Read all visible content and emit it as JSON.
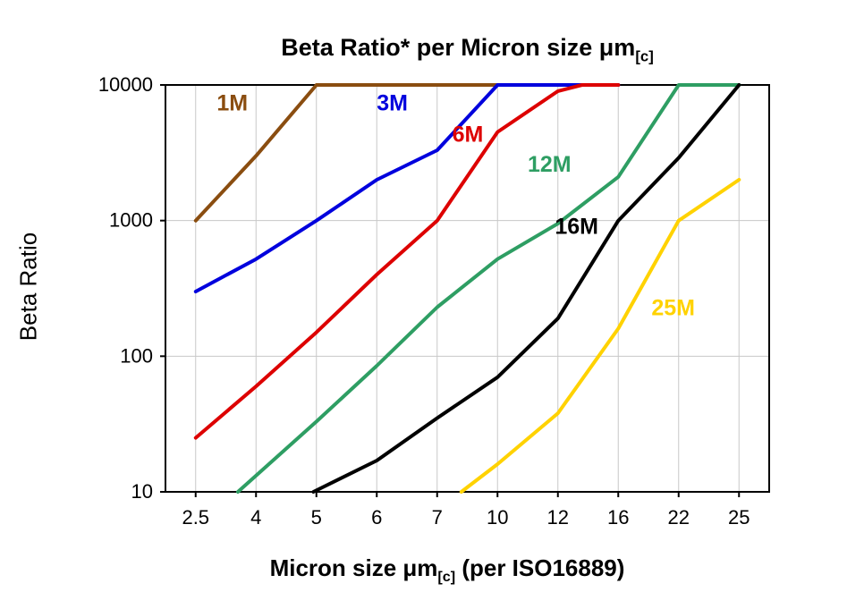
{
  "title": {
    "prefix": "Beta Ratio* per Micron size μm",
    "sub": "[c]"
  },
  "y_axis_label": "Beta Ratio",
  "x_axis_label": {
    "prefix": "Micron size μm",
    "sub": "[c]",
    "suffix": " (per ISO16889)"
  },
  "chart_data": {
    "type": "line",
    "title": "Beta Ratio* per Micron size μm[c]",
    "xlabel": "Micron size μm[c] (per ISO16889)",
    "ylabel": "Beta Ratio",
    "x_categories": [
      "2.5",
      "4",
      "5",
      "6",
      "7",
      "10",
      "12",
      "16",
      "22",
      "25"
    ],
    "y_scale": "log",
    "ylim": [
      10,
      10000
    ],
    "y_ticks": [
      "10",
      "100",
      "1000",
      "10000"
    ],
    "grid": true,
    "legend": "inline-labels",
    "grid_color": "#c8c8c8",
    "axis_color": "#000000",
    "series": [
      {
        "name": "1M",
        "color": "#8a4d10",
        "label_x": 0.35,
        "label_y": 6500,
        "points": [
          [
            0,
            1000
          ],
          [
            1,
            3000
          ],
          [
            2,
            10000
          ],
          [
            5,
            10000
          ]
        ]
      },
      {
        "name": "3M",
        "color": "#0000dd",
        "label_x": 3.0,
        "label_y": 6500,
        "points": [
          [
            0,
            300
          ],
          [
            1,
            520
          ],
          [
            2,
            1000
          ],
          [
            3,
            2000
          ],
          [
            4,
            3300
          ],
          [
            5,
            10000
          ],
          [
            7,
            10000
          ]
        ]
      },
      {
        "name": "6M",
        "color": "#dd0000",
        "label_x": 4.25,
        "label_y": 3800,
        "points": [
          [
            0,
            25
          ],
          [
            1,
            60
          ],
          [
            2,
            150
          ],
          [
            3,
            400
          ],
          [
            4,
            1000
          ],
          [
            5,
            4500
          ],
          [
            6,
            9000
          ],
          [
            6.4,
            10000
          ],
          [
            7,
            10000
          ]
        ]
      },
      {
        "name": "12M",
        "color": "#2e9e63",
        "label_x": 5.5,
        "label_y": 2300,
        "points": [
          [
            0.7,
            10
          ],
          [
            2,
            33
          ],
          [
            3,
            85
          ],
          [
            4,
            230
          ],
          [
            5,
            520
          ],
          [
            6,
            950
          ],
          [
            7,
            2100
          ],
          [
            8,
            10000
          ],
          [
            9,
            10000
          ]
        ]
      },
      {
        "name": "16M",
        "color": "#000000",
        "label_x": 5.95,
        "label_y": 800,
        "points": [
          [
            1.95,
            10
          ],
          [
            3,
            17
          ],
          [
            4,
            35
          ],
          [
            5,
            70
          ],
          [
            6,
            190
          ],
          [
            7,
            1000
          ],
          [
            8,
            2900
          ],
          [
            9,
            10000
          ]
        ]
      },
      {
        "name": "25M",
        "color": "#ffd200",
        "label_x": 7.55,
        "label_y": 200,
        "points": [
          [
            4.4,
            10
          ],
          [
            5,
            16
          ],
          [
            6,
            38
          ],
          [
            7,
            160
          ],
          [
            8,
            1000
          ],
          [
            9,
            2000
          ]
        ]
      }
    ]
  }
}
